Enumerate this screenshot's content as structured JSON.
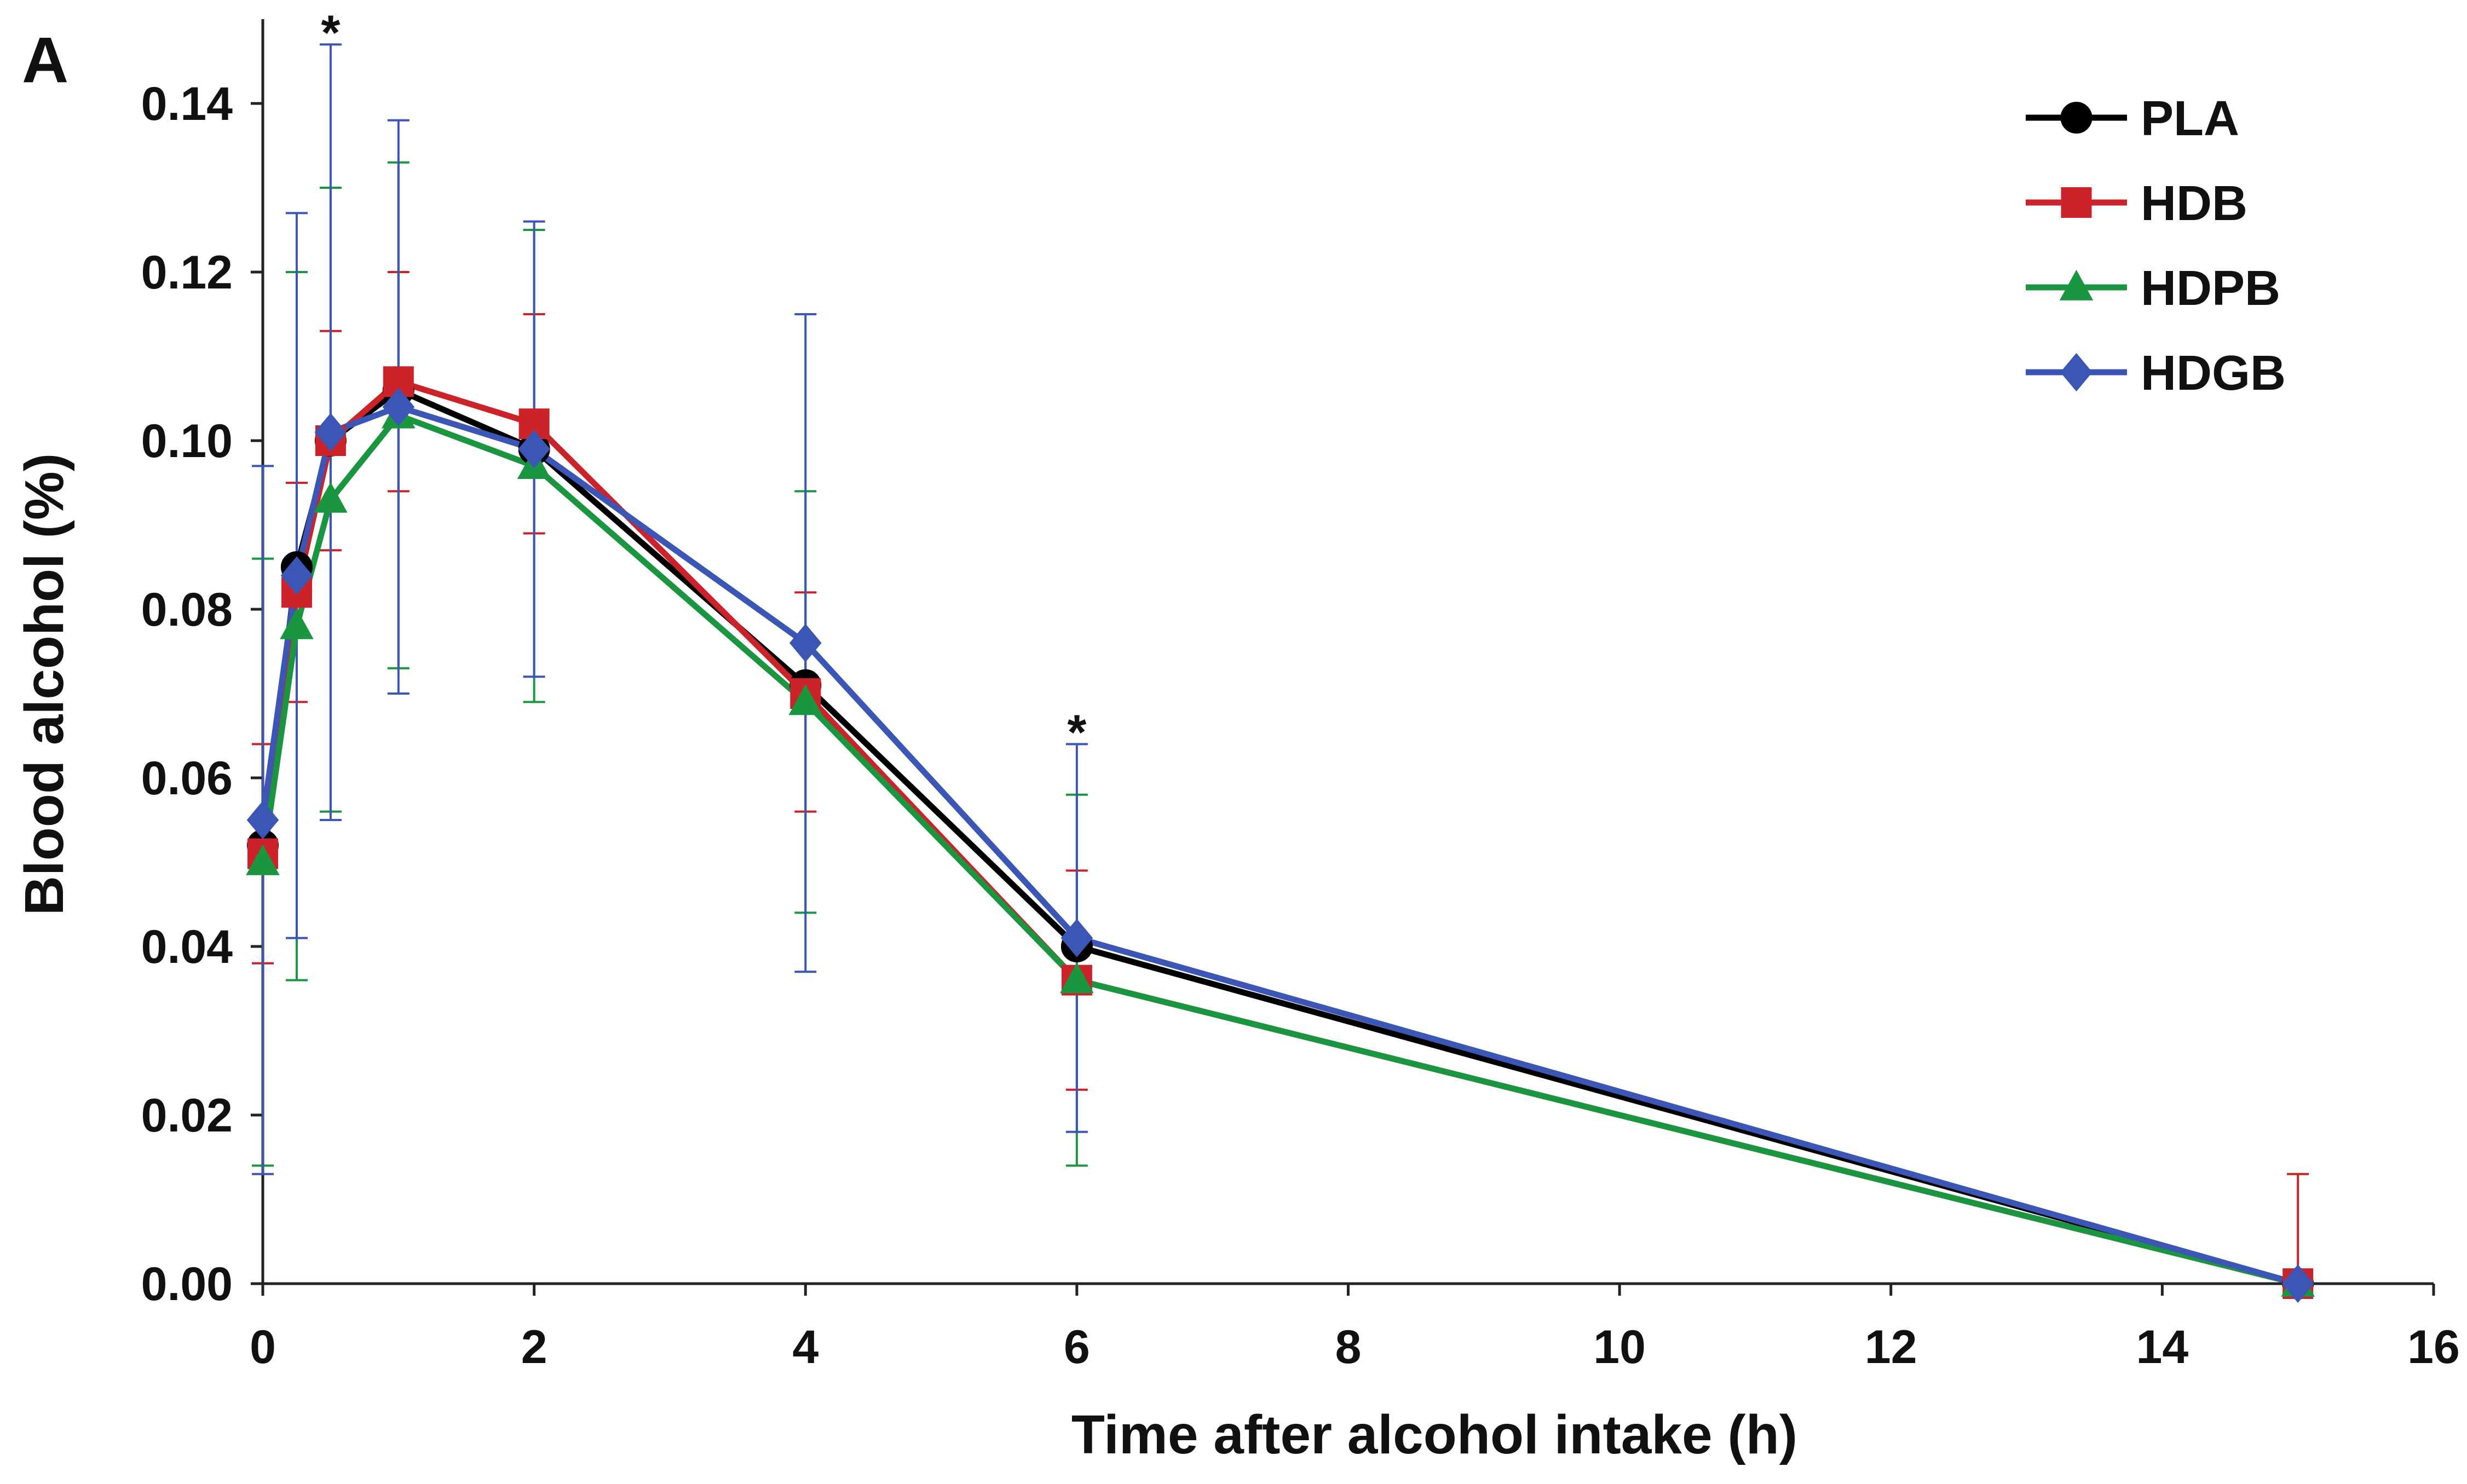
{
  "panel_label": "A",
  "chart_data": {
    "type": "line",
    "title": "",
    "xlabel": "Time after alcohol intake (h)",
    "ylabel": "Blood alcohol (%)",
    "xlim": [
      0,
      16
    ],
    "ylim": [
      0,
      0.15
    ],
    "x_ticks": [
      0,
      2,
      4,
      6,
      8,
      10,
      12,
      14,
      16
    ],
    "x_tick_labels": [
      "0",
      "2",
      "4",
      "6",
      "8",
      "10",
      "12",
      "14",
      "16"
    ],
    "y_ticks": [
      0,
      0.02,
      0.04,
      0.06,
      0.08,
      0.1,
      0.12,
      0.14
    ],
    "y_tick_labels": [
      "0.00",
      "0.02",
      "0.04",
      "0.06",
      "0.08",
      "0.10",
      "0.12",
      "0.14"
    ],
    "grid": false,
    "legend_position": "top-right",
    "x": [
      0,
      0.25,
      0.5,
      1,
      2,
      4,
      6,
      15
    ],
    "series": [
      {
        "name": "PLA",
        "color": "#000000",
        "marker": "circle",
        "values": [
          0.052,
          0.085,
          0.1,
          0.106,
          0.099,
          0.071,
          0.04,
          0.0
        ],
        "err_high": [
          null,
          null,
          null,
          null,
          null,
          null,
          null,
          null
        ],
        "err_low": [
          null,
          null,
          null,
          null,
          null,
          null,
          null,
          null
        ]
      },
      {
        "name": "HDB",
        "color": "#cc2229",
        "marker": "square",
        "values": [
          0.051,
          0.082,
          0.1,
          0.107,
          0.102,
          0.07,
          0.036,
          0.0
        ],
        "err_high": [
          0.064,
          0.095,
          0.113,
          0.12,
          0.115,
          0.082,
          0.049,
          0.013
        ],
        "err_low": [
          0.038,
          0.069,
          0.087,
          0.094,
          0.089,
          0.056,
          0.023,
          0.0
        ]
      },
      {
        "name": "HDPB",
        "color": "#1a9641",
        "marker": "triangle",
        "values": [
          0.05,
          0.078,
          0.093,
          0.103,
          0.097,
          0.069,
          0.036,
          0.0
        ],
        "err_high": [
          0.086,
          0.12,
          0.13,
          0.133,
          0.125,
          0.094,
          0.058,
          0.0
        ],
        "err_low": [
          0.014,
          0.036,
          0.056,
          0.073,
          0.069,
          0.044,
          0.014,
          0.0
        ]
      },
      {
        "name": "HDGB",
        "color": "#3b56b4",
        "marker": "diamond",
        "values": [
          0.055,
          0.084,
          0.101,
          0.104,
          0.099,
          0.076,
          0.041,
          0.0
        ],
        "err_high": [
          0.097,
          0.127,
          0.147,
          0.138,
          0.126,
          0.115,
          0.064,
          0.0
        ],
        "err_low": [
          0.013,
          0.041,
          0.055,
          0.07,
          0.072,
          0.037,
          0.018,
          0.0
        ]
      }
    ],
    "annotations": [
      {
        "text": "*",
        "x": 0.5,
        "y": 0.149
      },
      {
        "text": "*",
        "x": 6,
        "y": 0.066
      }
    ]
  }
}
